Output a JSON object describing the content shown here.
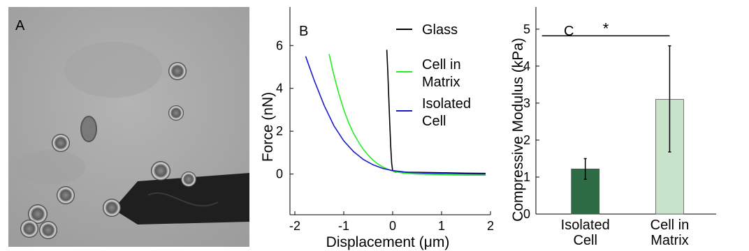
{
  "panels": {
    "a": {
      "label": "A"
    },
    "b": {
      "label": "B"
    },
    "c": {
      "label": "C"
    }
  },
  "chart_data": [
    {
      "type": "line",
      "xlabel": "Displacement (μm)",
      "ylabel": "Force (nN)",
      "xlim": [
        -2.1,
        2.0
      ],
      "ylim": [
        -1.9,
        7.8
      ],
      "xticks": [
        -2,
        -1,
        0,
        1,
        2
      ],
      "yticks": [
        0,
        2,
        4,
        6
      ],
      "legend_position": "top-right",
      "series": [
        {
          "name": "Glass",
          "color": "#000000",
          "x": [
            -0.12,
            -0.1,
            -0.08,
            -0.06,
            -0.04,
            -0.02,
            0.0,
            0.05,
            0.2,
            0.5,
            1.0,
            1.5,
            1.9
          ],
          "y": [
            5.8,
            4.8,
            3.6,
            2.4,
            1.3,
            0.5,
            0.15,
            0.1,
            0.09,
            0.08,
            0.06,
            0.04,
            0.03
          ]
        },
        {
          "name": "Cell in\nMatrix",
          "color": "#22ee22",
          "x": [
            -1.3,
            -1.2,
            -1.1,
            -1.0,
            -0.9,
            -0.8,
            -0.7,
            -0.6,
            -0.5,
            -0.4,
            -0.3,
            -0.2,
            -0.1,
            0.0,
            0.2,
            0.5,
            1.0,
            1.5,
            1.9
          ],
          "y": [
            5.6,
            4.6,
            3.75,
            3.0,
            2.4,
            1.9,
            1.5,
            1.15,
            0.88,
            0.65,
            0.47,
            0.33,
            0.22,
            0.14,
            0.05,
            0.0,
            -0.03,
            -0.05,
            -0.05
          ]
        },
        {
          "name": "Isolated\nCell",
          "color": "#1a1acc",
          "x": [
            -1.78,
            -1.6,
            -1.4,
            -1.2,
            -1.0,
            -0.8,
            -0.6,
            -0.4,
            -0.2,
            0.0,
            0.3,
            0.6,
            1.0,
            1.5,
            1.9
          ],
          "y": [
            5.5,
            4.35,
            3.2,
            2.25,
            1.55,
            1.05,
            0.68,
            0.43,
            0.26,
            0.16,
            0.08,
            0.05,
            0.03,
            0.01,
            0.0
          ]
        }
      ]
    },
    {
      "type": "bar",
      "ylabel": "Compressive Modulus  (kPa)",
      "ylim": [
        0,
        5.6
      ],
      "yticks": [
        0,
        1,
        2,
        3,
        4,
        5
      ],
      "categories": [
        "Isolated\nCell",
        "Cell in\nMatrix"
      ],
      "values": [
        1.22,
        3.1
      ],
      "errors_low": [
        0.28,
        1.42
      ],
      "errors_high": [
        0.28,
        1.45
      ],
      "colors": [
        "#2d6b45",
        "#c7e3c9"
      ],
      "annotation": "*"
    }
  ]
}
